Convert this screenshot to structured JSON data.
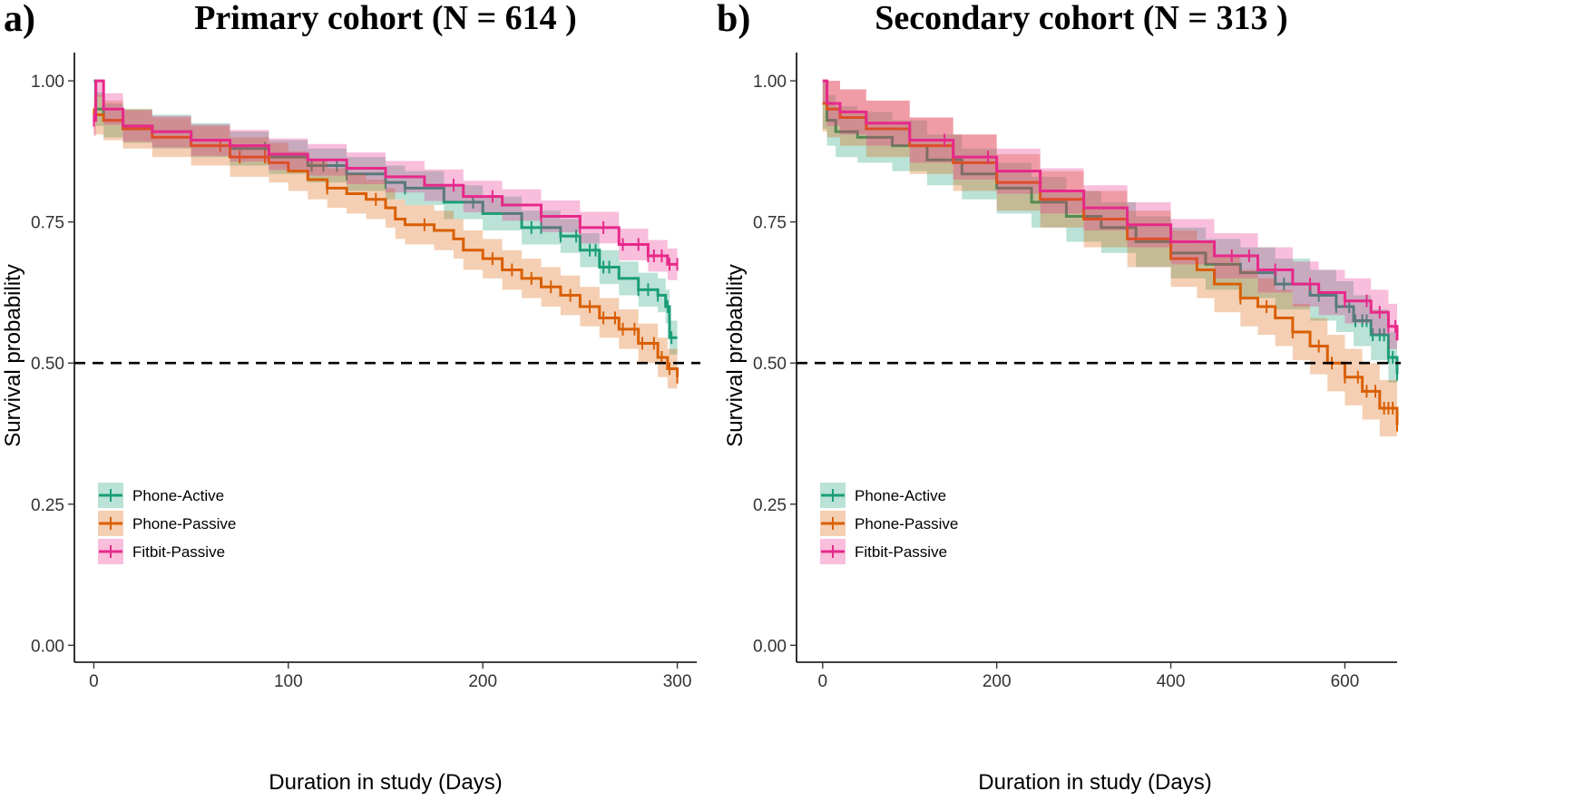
{
  "chart_data": [
    {
      "type": "line",
      "panel_label": "a)",
      "title": "Primary cohort (N = 614 )",
      "xlabel": "Duration in study (Days)",
      "ylabel": "Survival probability",
      "xlim": [
        -10,
        310
      ],
      "ylim": [
        -0.03,
        1.05
      ],
      "xticks": [
        0,
        100,
        200,
        300
      ],
      "yticks": [
        0.0,
        0.25,
        0.5,
        0.75,
        1.0
      ],
      "ytick_labels": [
        "0.00",
        "0.25",
        "0.50",
        "0.75",
        "1.00"
      ],
      "reference_line": 0.5,
      "legend_position": "bottom-left",
      "series": [
        {
          "name": "Phone-Active",
          "color": "#1b9e77",
          "x": [
            0,
            1,
            5,
            15,
            30,
            50,
            70,
            90,
            110,
            130,
            150,
            160,
            180,
            200,
            220,
            240,
            250,
            260,
            270,
            280,
            290,
            294,
            296,
            300
          ],
          "y": [
            1.0,
            0.95,
            0.93,
            0.92,
            0.91,
            0.895,
            0.88,
            0.865,
            0.85,
            0.835,
            0.82,
            0.81,
            0.785,
            0.765,
            0.74,
            0.725,
            0.7,
            0.67,
            0.65,
            0.63,
            0.62,
            0.6,
            0.545,
            0.545
          ],
          "band": 0.03,
          "censor_x": [
            88,
            112,
            118,
            125,
            130,
            150,
            160,
            195,
            225,
            230,
            240,
            248,
            255,
            258,
            262,
            265,
            280,
            285,
            290,
            295,
            297
          ]
        },
        {
          "name": "Phone-Passive",
          "color": "#d95f02",
          "x": [
            0,
            1,
            5,
            15,
            30,
            50,
            70,
            90,
            100,
            110,
            120,
            130,
            140,
            150,
            155,
            160,
            175,
            185,
            190,
            200,
            210,
            220,
            230,
            240,
            250,
            260,
            270,
            280,
            290,
            295,
            300
          ],
          "y": [
            0.94,
            0.94,
            0.93,
            0.915,
            0.9,
            0.885,
            0.865,
            0.855,
            0.84,
            0.825,
            0.81,
            0.8,
            0.79,
            0.775,
            0.755,
            0.745,
            0.735,
            0.72,
            0.7,
            0.685,
            0.665,
            0.65,
            0.635,
            0.62,
            0.6,
            0.58,
            0.56,
            0.535,
            0.51,
            0.49,
            0.475
          ],
          "band": 0.035,
          "censor_x": [
            0,
            65,
            75,
            88,
            120,
            145,
            170,
            205,
            215,
            225,
            235,
            245,
            255,
            262,
            268,
            272,
            278,
            282,
            288,
            292,
            296,
            300
          ]
        },
        {
          "name": "Fitbit-Passive",
          "color": "#e7298a",
          "x": [
            0,
            1,
            5,
            15,
            30,
            50,
            70,
            90,
            110,
            130,
            150,
            170,
            190,
            210,
            230,
            250,
            270,
            285,
            295,
            300
          ],
          "y": [
            0.93,
            1.0,
            0.95,
            0.92,
            0.91,
            0.895,
            0.885,
            0.87,
            0.86,
            0.845,
            0.83,
            0.815,
            0.795,
            0.78,
            0.76,
            0.74,
            0.71,
            0.69,
            0.675,
            0.675
          ],
          "band": 0.028,
          "censor_x": [
            0,
            185,
            205,
            230,
            250,
            262,
            272,
            280,
            285,
            288,
            292,
            296,
            300
          ]
        }
      ]
    },
    {
      "type": "line",
      "panel_label": "b)",
      "title": "Secondary cohort (N = 313 )",
      "xlabel": "Duration in study (Days)",
      "ylabel": "Survival probability",
      "xlim": [
        -30,
        660
      ],
      "ylim": [
        -0.03,
        1.05
      ],
      "xticks": [
        0,
        200,
        400,
        600
      ],
      "yticks": [
        0.0,
        0.25,
        0.5,
        0.75,
        1.0
      ],
      "ytick_labels": [
        "0.00",
        "0.25",
        "0.50",
        "0.75",
        "1.00"
      ],
      "reference_line": 0.5,
      "legend_position": "bottom-left",
      "series": [
        {
          "name": "Phone-Active",
          "color": "#1b9e77",
          "x": [
            0,
            5,
            15,
            40,
            80,
            120,
            160,
            200,
            240,
            280,
            320,
            360,
            400,
            440,
            480,
            520,
            560,
            590,
            610,
            630,
            650,
            660
          ],
          "y": [
            0.96,
            0.93,
            0.91,
            0.9,
            0.885,
            0.86,
            0.835,
            0.81,
            0.785,
            0.76,
            0.74,
            0.715,
            0.695,
            0.675,
            0.66,
            0.64,
            0.62,
            0.6,
            0.575,
            0.55,
            0.51,
            0.48
          ],
          "band": 0.045,
          "censor_x": [
            530,
            570,
            590,
            605,
            612,
            620,
            625,
            632,
            640,
            645,
            650,
            655,
            660
          ]
        },
        {
          "name": "Phone-Passive",
          "color": "#d95f02",
          "x": [
            0,
            5,
            20,
            50,
            100,
            150,
            200,
            250,
            300,
            350,
            400,
            430,
            450,
            480,
            500,
            520,
            540,
            560,
            580,
            600,
            620,
            640,
            660
          ],
          "y": [
            0.96,
            0.95,
            0.935,
            0.915,
            0.885,
            0.855,
            0.82,
            0.79,
            0.755,
            0.72,
            0.685,
            0.665,
            0.64,
            0.615,
            0.6,
            0.58,
            0.555,
            0.53,
            0.5,
            0.475,
            0.45,
            0.42,
            0.39
          ],
          "band": 0.05,
          "censor_x": [
            480,
            510,
            540,
            570,
            585,
            600,
            615,
            625,
            635,
            645,
            650,
            655,
            660
          ]
        },
        {
          "name": "Fitbit-Passive",
          "color": "#e7298a",
          "x": [
            0,
            5,
            20,
            50,
            100,
            150,
            200,
            250,
            300,
            350,
            400,
            450,
            500,
            540,
            570,
            600,
            630,
            650,
            660
          ],
          "y": [
            1.0,
            0.96,
            0.945,
            0.925,
            0.895,
            0.865,
            0.84,
            0.805,
            0.775,
            0.745,
            0.715,
            0.69,
            0.665,
            0.64,
            0.625,
            0.61,
            0.59,
            0.565,
            0.54
          ],
          "band": 0.04,
          "censor_x": [
            140,
            190,
            470,
            490,
            520,
            560,
            600,
            625,
            640,
            650,
            658
          ]
        }
      ]
    }
  ]
}
